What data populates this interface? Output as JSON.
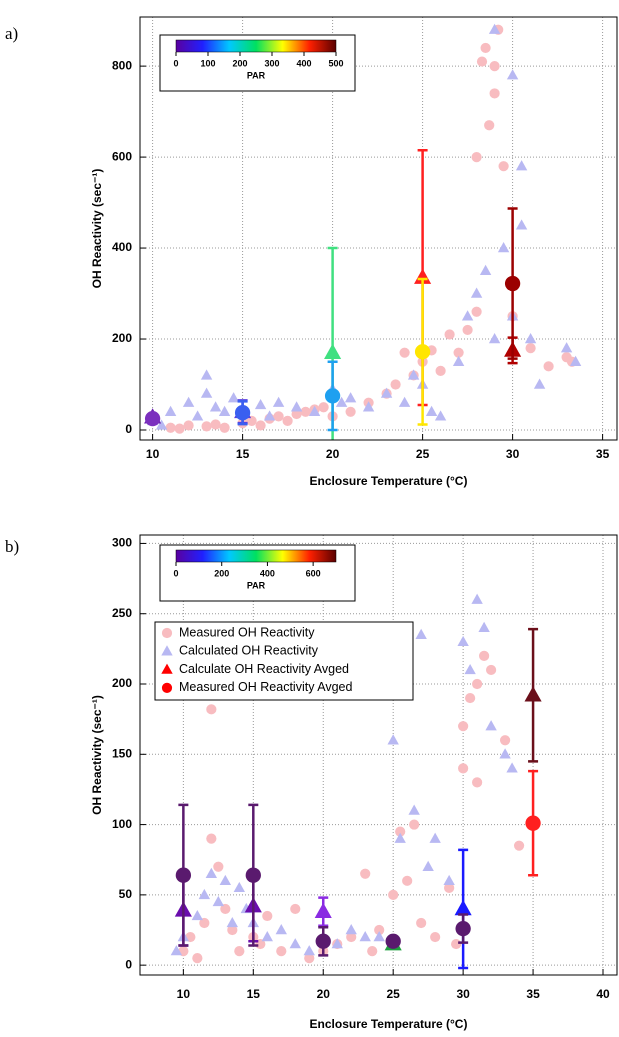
{
  "chart_data": [
    {
      "type": "scatter",
      "panel_label": "a)",
      "x_label": "Enclosure Temperature (°C)",
      "y_label": "OH Reactivity (sec⁻¹)",
      "xlim": [
        9.3,
        35.8
      ],
      "xticks": [
        10,
        15,
        20,
        25,
        30,
        35
      ],
      "ylim": [
        -22,
        908
      ],
      "yticks": [
        0,
        200,
        400,
        600,
        800
      ],
      "grid": true,
      "colorbar": {
        "label": "PAR",
        "lim": [
          0,
          500
        ],
        "ticks": [
          0,
          100,
          200,
          300,
          400,
          500
        ],
        "colors": [
          "#5a00a0",
          "#2020ff",
          "#00c8ff",
          "#00e060",
          "#ffff00",
          "#ff2000",
          "#5a0000"
        ]
      },
      "series": [
        {
          "color": "#f8bcc0",
          "marker": "circle",
          "x": [
            11,
            11.5,
            12,
            13,
            13.5,
            14,
            15,
            15.5,
            16,
            16.5,
            17,
            17.5,
            18,
            18.5,
            19,
            19.5,
            20,
            21,
            22,
            23,
            23.5,
            24,
            24.5,
            25,
            25.5,
            26,
            26.5,
            27,
            27.5,
            28,
            28,
            28.3,
            28.5,
            28.7,
            29,
            29,
            29.2,
            29.5,
            30,
            31,
            32,
            33,
            33.3
          ],
          "values": [
            5,
            3,
            10,
            8,
            12,
            5,
            15,
            20,
            10,
            25,
            30,
            20,
            35,
            40,
            45,
            50,
            30,
            40,
            60,
            80,
            100,
            170,
            120,
            150,
            175,
            130,
            210,
            170,
            220,
            260,
            600,
            810,
            840,
            670,
            800,
            740,
            880,
            580,
            250,
            180,
            140,
            160,
            150
          ]
        },
        {
          "color": "#b8b8f2",
          "marker": "triangle",
          "x": [
            10,
            10.5,
            11,
            12,
            12.5,
            13,
            13,
            13.5,
            14,
            14.5,
            15,
            16,
            16.5,
            17,
            18,
            19,
            20,
            20.5,
            21,
            22,
            23,
            24,
            24.5,
            25,
            25.5,
            26,
            27,
            27.5,
            28,
            28.5,
            29,
            29,
            29.5,
            30,
            30,
            30.5,
            30.5,
            31,
            31.5,
            33,
            33.5
          ],
          "values": [
            20,
            10,
            40,
            60,
            30,
            120,
            80,
            50,
            40,
            70,
            45,
            55,
            30,
            60,
            50,
            40,
            90,
            60,
            70,
            50,
            80,
            60,
            120,
            100,
            40,
            30,
            150,
            250,
            300,
            350,
            880,
            200,
            400,
            780,
            250,
            580,
            450,
            200,
            100,
            180,
            150
          ]
        },
        {
          "marker": "triangle",
          "avg": true,
          "x": [
            10,
            15,
            20,
            25,
            30
          ],
          "values": [
            28,
            40,
            170,
            335,
            175
          ],
          "errors": [
            5,
            25,
            230,
            280,
            28
          ],
          "colors": [
            "#6a20b0",
            "#5a40e0",
            "#40e080",
            "#ff2020",
            "#b00000"
          ]
        },
        {
          "marker": "circle",
          "avg": true,
          "x": [
            10,
            15,
            20,
            25,
            30
          ],
          "values": [
            25,
            38,
            75,
            172,
            322
          ],
          "errors": [
            5,
            25,
            75,
            160,
            165
          ],
          "colors": [
            "#7b2fbe",
            "#3a5ff0",
            "#1ea0f0",
            "#ffe600",
            "#9b0000"
          ]
        }
      ]
    },
    {
      "type": "scatter",
      "panel_label": "b)",
      "x_label": "Enclosure Temperature (°C)",
      "y_label": "OH Reactivity (sec⁻¹)",
      "xlim": [
        6.9,
        41
      ],
      "xticks": [
        10,
        15,
        20,
        25,
        30,
        35,
        40
      ],
      "ylim": [
        -7,
        306
      ],
      "yticks": [
        0,
        50,
        100,
        150,
        200,
        250,
        300
      ],
      "grid": true,
      "legend": "upper left",
      "colorbar": {
        "label": "PAR",
        "lim": [
          0,
          700
        ],
        "ticks": [
          0,
          200,
          400,
          600
        ],
        "colors": [
          "#5a00a0",
          "#2020ff",
          "#00c8ff",
          "#00e060",
          "#ffff00",
          "#ff2000",
          "#5a0000"
        ]
      },
      "series": [
        {
          "name": "Measured OH Reactivity",
          "color": "#f8bcc0",
          "marker": "circle",
          "x": [
            10,
            10.5,
            11,
            11.5,
            12,
            12,
            12.5,
            13,
            13.5,
            14,
            15,
            15.5,
            16,
            17,
            18,
            19,
            20,
            21,
            22,
            23,
            23.5,
            24,
            25,
            25.5,
            26,
            26.5,
            27,
            28,
            29,
            29.5,
            30,
            30,
            30.5,
            31,
            31,
            31.5,
            32,
            33,
            34
          ],
          "values": [
            10,
            20,
            5,
            30,
            182,
            90,
            70,
            40,
            25,
            10,
            20,
            15,
            35,
            10,
            40,
            5,
            10,
            15,
            20,
            65,
            10,
            25,
            50,
            95,
            60,
            100,
            30,
            20,
            55,
            15,
            140,
            170,
            190,
            200,
            130,
            220,
            210,
            160,
            85
          ]
        },
        {
          "name": "Calculated OH Reactivity",
          "color": "#b8b8f2",
          "marker": "triangle",
          "x": [
            9.5,
            10,
            11,
            11.5,
            12,
            12.5,
            13,
            13.5,
            14,
            14.5,
            15,
            16,
            17,
            18,
            19,
            20,
            21,
            22,
            23,
            24,
            25,
            25.5,
            26,
            26.5,
            27,
            27.5,
            28,
            29,
            30,
            30.5,
            31,
            31.5,
            32,
            33,
            33.5
          ],
          "values": [
            10,
            20,
            35,
            50,
            65,
            45,
            60,
            30,
            55,
            40,
            30,
            20,
            25,
            15,
            10,
            20,
            15,
            25,
            20,
            20,
            160,
            90,
            200,
            110,
            235,
            70,
            90,
            60,
            230,
            210,
            260,
            240,
            170,
            150,
            140
          ]
        },
        {
          "name": "Calculate OH Reactivity Avged",
          "color": "#ff0000",
          "marker": "triangle",
          "avg": true,
          "x": [
            10,
            15,
            20,
            25,
            30,
            35
          ],
          "values": [
            39,
            42,
            38,
            15,
            40,
            192
          ],
          "errors": [
            25,
            25,
            10,
            3,
            42,
            47
          ],
          "colors": [
            "#6a0dad",
            "#6a0dad",
            "#8a2be2",
            "#20a040",
            "#1a1aff",
            "#6b0f1a"
          ]
        },
        {
          "name": "Measured OH Reactivity Avged",
          "color": "#ff0000",
          "marker": "circle",
          "avg": true,
          "x": [
            10,
            15,
            20,
            25,
            30,
            35
          ],
          "values": [
            64,
            64,
            17,
            17,
            26,
            101
          ],
          "errors": [
            50,
            50,
            10,
            3,
            10,
            37
          ],
          "colors": [
            "#5a1a6e",
            "#5a1a6e",
            "#5a1a6e",
            "#5a1a6e",
            "#5a1a6e",
            "#ff2020"
          ]
        }
      ]
    }
  ]
}
